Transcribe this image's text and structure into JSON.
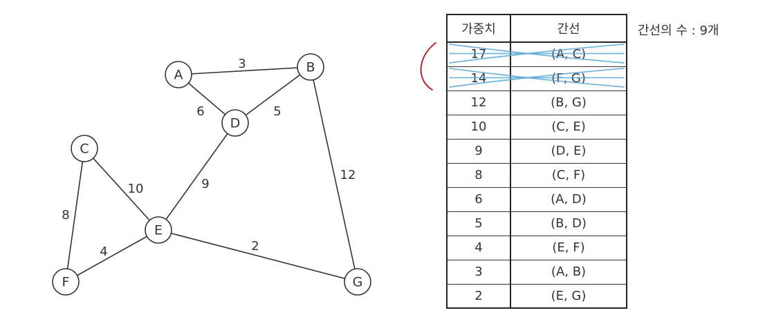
{
  "graph": {
    "nodes": [
      {
        "id": "A",
        "label": "A"
      },
      {
        "id": "B",
        "label": "B"
      },
      {
        "id": "C",
        "label": "C"
      },
      {
        "id": "D",
        "label": "D"
      },
      {
        "id": "E",
        "label": "E"
      },
      {
        "id": "F",
        "label": "F"
      },
      {
        "id": "G",
        "label": "G"
      }
    ],
    "edges": [
      {
        "from": "A",
        "to": "B",
        "weight": "3"
      },
      {
        "from": "A",
        "to": "D",
        "weight": "6"
      },
      {
        "from": "B",
        "to": "D",
        "weight": "5"
      },
      {
        "from": "B",
        "to": "G",
        "weight": "12"
      },
      {
        "from": "D",
        "to": "E",
        "weight": "9"
      },
      {
        "from": "C",
        "to": "E",
        "weight": "10"
      },
      {
        "from": "C",
        "to": "F",
        "weight": "8"
      },
      {
        "from": "E",
        "to": "F",
        "weight": "4"
      },
      {
        "from": "E",
        "to": "G",
        "weight": "2"
      }
    ]
  },
  "table": {
    "headers": {
      "weight": "가중치",
      "edge": "간선"
    },
    "rows": [
      {
        "weight": "17",
        "edge": "(A, C)",
        "crossed": true
      },
      {
        "weight": "14",
        "edge": "(F, G)",
        "crossed": true
      },
      {
        "weight": "12",
        "edge": "(B, G)",
        "crossed": false
      },
      {
        "weight": "10",
        "edge": "(C, E)",
        "crossed": false
      },
      {
        "weight": "9",
        "edge": "(D, E)",
        "crossed": false
      },
      {
        "weight": "8",
        "edge": "(C, F)",
        "crossed": false
      },
      {
        "weight": "6",
        "edge": "(A, D)",
        "crossed": false
      },
      {
        "weight": "5",
        "edge": "(B, D)",
        "crossed": false
      },
      {
        "weight": "4",
        "edge": "(E, F)",
        "crossed": false
      },
      {
        "weight": "3",
        "edge": "(A, B)",
        "crossed": false
      },
      {
        "weight": "2",
        "edge": "(E, G)",
        "crossed": false
      }
    ]
  },
  "edge_count_label": "간선의 수 : 9개",
  "colors": {
    "ink": "#333333",
    "strike": "#5aa9d6",
    "bracket": "#b3262e"
  }
}
